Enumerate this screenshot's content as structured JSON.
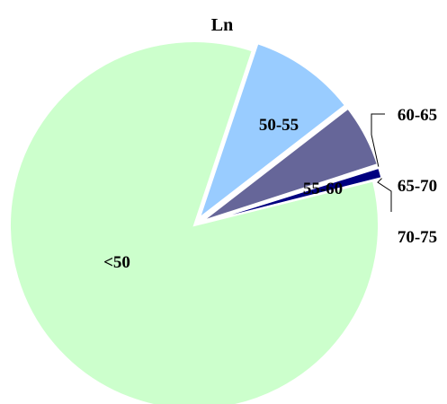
{
  "chart_data": {
    "type": "pie",
    "title": "Ln",
    "slices": [
      {
        "label": "<50",
        "value": 84.0,
        "color": "#CCFFCC"
      },
      {
        "label": "50-55",
        "value": 9.4,
        "color": "#99CCFF"
      },
      {
        "label": "55-60",
        "value": 5.5,
        "color": "#666699"
      },
      {
        "label": "60-65",
        "value": 0.15,
        "color": "#003366"
      },
      {
        "label": "65-70",
        "value": 0.9,
        "color": "#000080"
      },
      {
        "label": "70-75",
        "value": 0.05,
        "color": "#000066"
      }
    ],
    "legend": "none"
  }
}
